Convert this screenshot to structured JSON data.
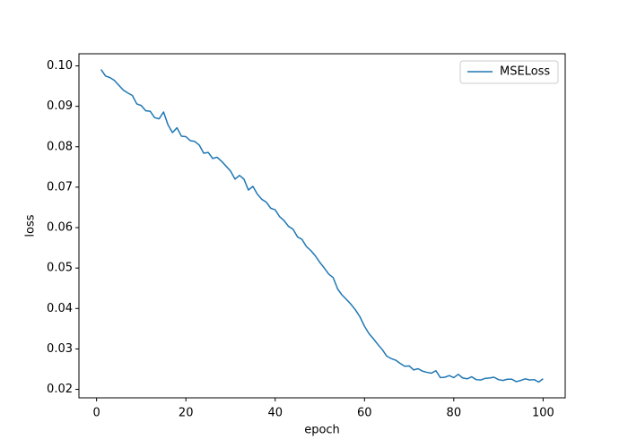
{
  "chart_data": {
    "type": "line",
    "x_label": "epoch",
    "y_label": "loss",
    "x": [
      1,
      2,
      3,
      4,
      5,
      6,
      7,
      8,
      9,
      10,
      11,
      12,
      13,
      14,
      15,
      16,
      17,
      18,
      19,
      20,
      21,
      22,
      23,
      24,
      25,
      26,
      27,
      28,
      29,
      30,
      31,
      32,
      33,
      34,
      35,
      36,
      37,
      38,
      39,
      40,
      41,
      42,
      43,
      44,
      45,
      46,
      47,
      48,
      49,
      50,
      51,
      52,
      53,
      54,
      55,
      56,
      57,
      58,
      59,
      60,
      61,
      62,
      63,
      64,
      65,
      66,
      67,
      68,
      69,
      70,
      71,
      72,
      73,
      74,
      75,
      76,
      77,
      78,
      79,
      80,
      81,
      82,
      83,
      84,
      85,
      86,
      87,
      88,
      89,
      90,
      91,
      92,
      93,
      94,
      95,
      96,
      97,
      98,
      99,
      100
    ],
    "series": [
      {
        "name": "MSELoss",
        "color": "#1f77b4",
        "values": [
          0.0991,
          0.0975,
          0.0971,
          0.0964,
          0.0952,
          0.094,
          0.0933,
          0.0927,
          0.0906,
          0.0902,
          0.0889,
          0.0888,
          0.0872,
          0.0869,
          0.0886,
          0.0854,
          0.0835,
          0.0847,
          0.0826,
          0.0825,
          0.0815,
          0.0813,
          0.0804,
          0.0784,
          0.0786,
          0.0771,
          0.0774,
          0.0764,
          0.0752,
          0.074,
          0.072,
          0.0729,
          0.072,
          0.0693,
          0.0702,
          0.0683,
          0.067,
          0.0663,
          0.0648,
          0.0644,
          0.0627,
          0.0617,
          0.0603,
          0.0596,
          0.0577,
          0.0571,
          0.0553,
          0.0543,
          0.053,
          0.0514,
          0.05,
          0.0485,
          0.0476,
          0.0448,
          0.0433,
          0.0422,
          0.041,
          0.0396,
          0.0379,
          0.0356,
          0.0338,
          0.0325,
          0.0311,
          0.0298,
          0.0282,
          0.0276,
          0.0272,
          0.0264,
          0.0257,
          0.0258,
          0.0248,
          0.0251,
          0.0245,
          0.0242,
          0.024,
          0.0246,
          0.0229,
          0.023,
          0.0234,
          0.0229,
          0.0237,
          0.0228,
          0.0226,
          0.0231,
          0.0224,
          0.0223,
          0.0227,
          0.0228,
          0.023,
          0.0224,
          0.0222,
          0.0225,
          0.0225,
          0.0219,
          0.0222,
          0.0226,
          0.0223,
          0.0224,
          0.0218,
          0.0226
        ]
      }
    ],
    "xlim": [
      -3.95,
      104.95
    ],
    "xticks": [
      0,
      20,
      40,
      60,
      80,
      100
    ],
    "ylim": [
      0.0179,
      0.103
    ],
    "yticks": [
      0.02,
      0.03,
      0.04,
      0.05,
      0.06,
      0.07,
      0.08,
      0.09,
      {
        "value": 0.1,
        "label": "0.10"
      }
    ],
    "legend": "upper right",
    "grid": false
  }
}
